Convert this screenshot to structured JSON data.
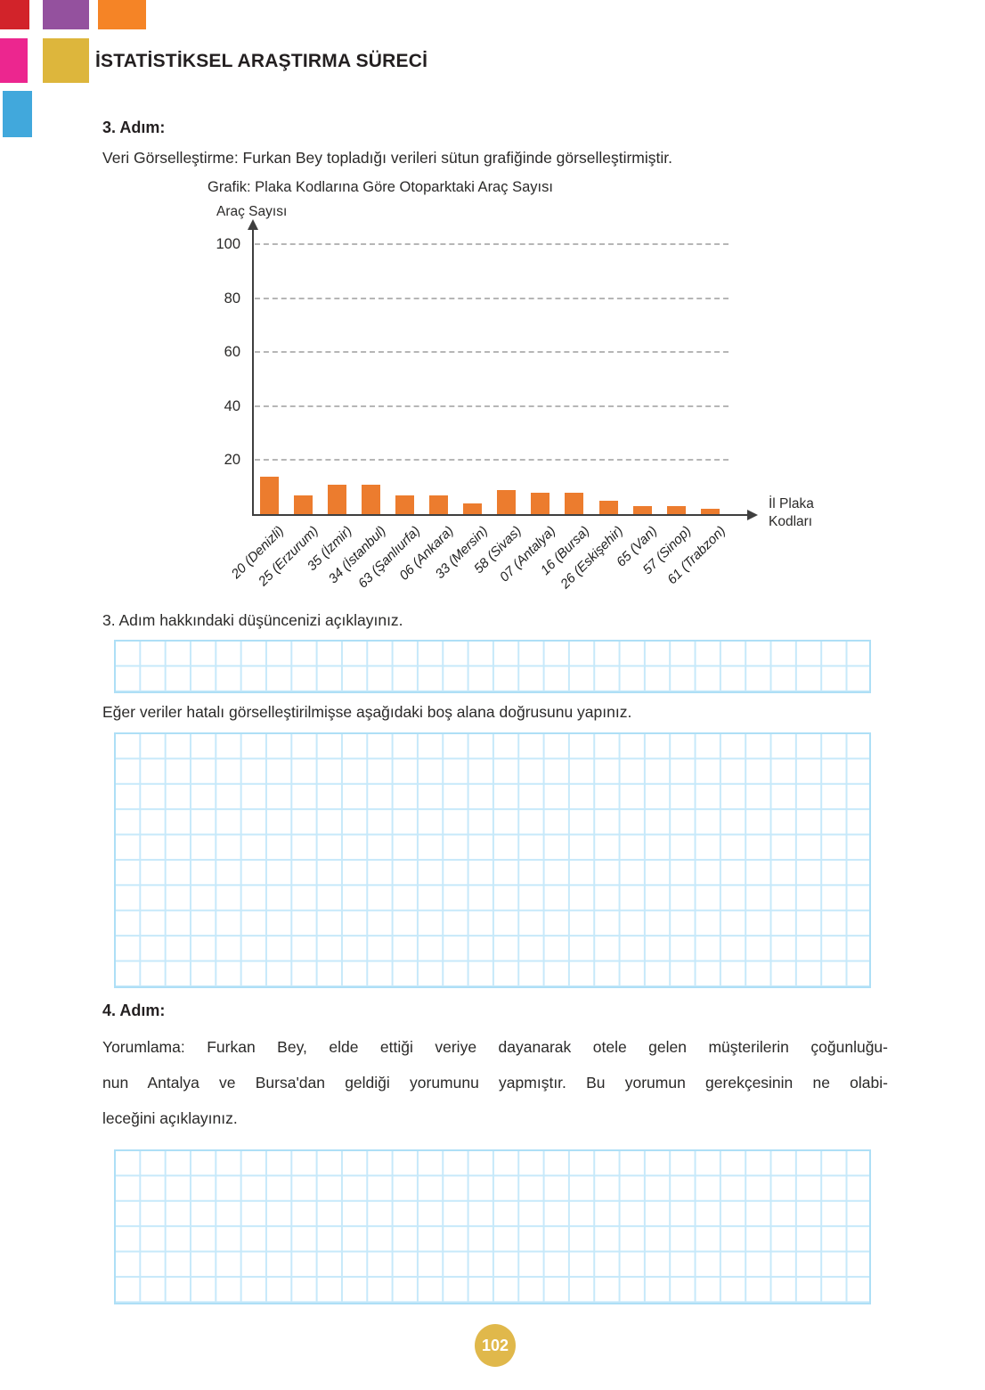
{
  "page": {
    "header": {
      "title": "İSTATİSTİKSEL ARAŞTIRMA SÜRECİ",
      "squares": [
        {
          "name": "red-square",
          "color": "#d2232a"
        },
        {
          "name": "purple-square",
          "color": "#94519e"
        },
        {
          "name": "orange-square",
          "color": "#f58426"
        },
        {
          "name": "pink-square",
          "color": "#ec268f"
        },
        {
          "name": "yellow-square",
          "color": "#ddb63c"
        },
        {
          "name": "blue-square",
          "color": "#41a8dc"
        }
      ]
    },
    "step3": {
      "heading": "3. Adım:",
      "intro": "Veri Görselleştirme: Furkan Bey topladığı verileri sütun grafiğinde görselleştirmiştir.",
      "question": "3. Adım hakkındaki düşüncenizi açıklayınız.",
      "redraw_prompt": "Eğer veriler hatalı görselleştirilmişse aşağıdaki boş alana doğrusunu yapınız."
    },
    "step4": {
      "heading": "4. Adım:",
      "lines": [
        "Yorumlama: Furkan Bey, elde ettiği veriye dayanarak otele gelen müşterilerin çoğunluğu-",
        "nun Antalya ve Bursa'dan geldiği yorumunu yapmıştır. Bu yorumun gerekçesinin ne olabi-",
        "leceğini açıklayınız."
      ]
    },
    "page_number": "102",
    "badge_color": "#e0b84b"
  },
  "chart_data": {
    "type": "bar",
    "title": "Grafik: Plaka Kodlarına Göre Otoparktaki Araç Sayısı",
    "ylabel": "Araç Sayısı",
    "xlabel": "İl Plaka Kodları",
    "xlabel_lines": [
      "İl Plaka",
      "Kodları"
    ],
    "categories": [
      "20 (Denizli)",
      "25 (Erzurum)",
      "35 (İzmir)",
      "34 (İstanbul)",
      "63 (Şanlıurfa)",
      "06 (Ankara)",
      "33 (Mersin)",
      "58 (Sivas)",
      "07 (Antalya)",
      "16 (Bursa)",
      "26 (Eskişehir)",
      "65 (Van)",
      "57 (Sinop)",
      "61 (Trabzon)"
    ],
    "values": [
      14,
      7,
      11,
      11,
      7,
      7,
      4,
      9,
      8,
      8,
      5,
      3,
      3,
      2
    ],
    "yticks": [
      20,
      40,
      60,
      80,
      100
    ],
    "ylim": [
      0,
      107
    ],
    "grid": "horizontal-dashed",
    "legend": "none",
    "bar_color": "#ec7c2e"
  }
}
